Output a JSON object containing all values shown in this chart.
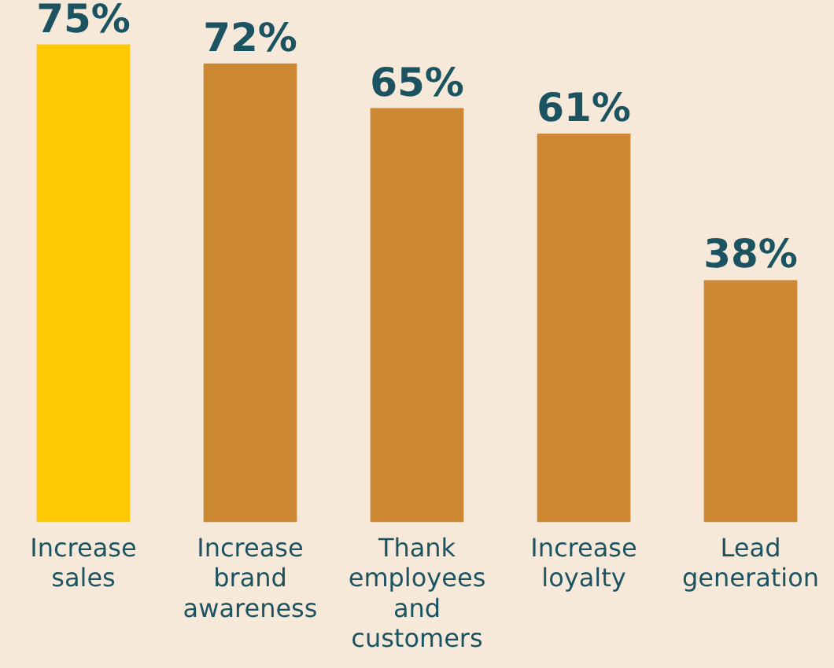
{
  "chart_data": {
    "type": "bar",
    "categories": [
      "Increase sales",
      "Increase brand awareness",
      "Thank employees and customers",
      "Increase loyalty",
      "Lead generation"
    ],
    "values": [
      75,
      72,
      65,
      61,
      38
    ],
    "colors": [
      "#fdc904",
      "#cd8833",
      "#cd8833",
      "#cd8833",
      "#cd8833"
    ],
    "value_labels": [
      "75%",
      "72%",
      "65%",
      "61%",
      "38%"
    ],
    "tick_labels": "x",
    "grid": false,
    "legend": false
  }
}
